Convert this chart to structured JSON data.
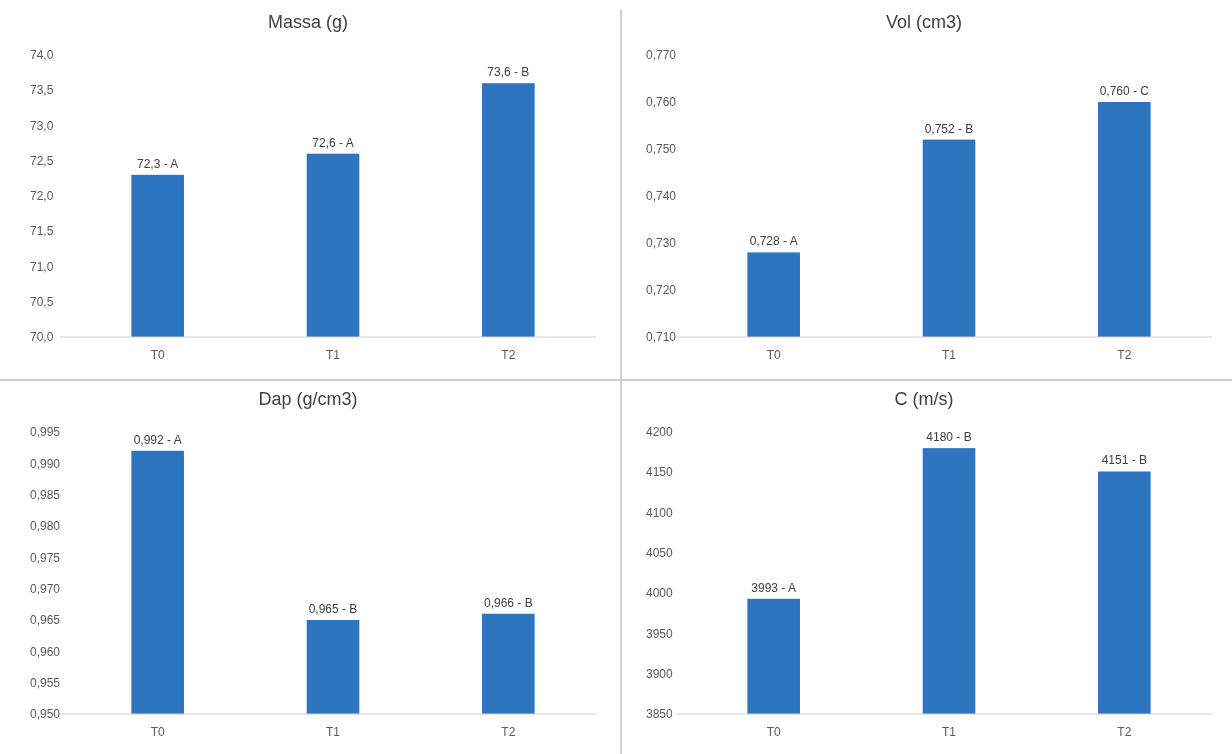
{
  "chart_data": [
    {
      "type": "bar",
      "title": "Massa (g)",
      "categories": [
        "T0",
        "T1",
        "T2"
      ],
      "values": [
        72.3,
        72.6,
        73.6
      ],
      "color": "#2e75c0",
      "value_labels": [
        "72,3 - A",
        "72,6 - A",
        "73,6 - B"
      ],
      "ylim": [
        70,
        74
      ],
      "yticks": [
        {
          "value": 70,
          "label": "70,0"
        },
        {
          "value": 70.5,
          "label": "70,5"
        },
        {
          "value": 71,
          "label": "71,0"
        },
        {
          "value": 71.5,
          "label": "71,5"
        },
        {
          "value": 72,
          "label": "72,0"
        },
        {
          "value": 72.5,
          "label": "72,5"
        },
        {
          "value": 73,
          "label": "73,0"
        },
        {
          "value": 73.5,
          "label": "73,5"
        },
        {
          "value": 74,
          "label": "74,0"
        }
      ]
    },
    {
      "type": "bar",
      "title": "Vol (cm3)",
      "categories": [
        "T0",
        "T1",
        "T2"
      ],
      "values": [
        0.728,
        0.752,
        0.76
      ],
      "color": "#2e75c0",
      "value_labels": [
        "0,728 - A",
        "0,752 - B",
        "0,760 - C"
      ],
      "ylim": [
        0.71,
        0.77
      ],
      "yticks": [
        {
          "value": 0.71,
          "label": "0,710"
        },
        {
          "value": 0.72,
          "label": "0,720"
        },
        {
          "value": 0.73,
          "label": "0,730"
        },
        {
          "value": 0.74,
          "label": "0,740"
        },
        {
          "value": 0.75,
          "label": "0,750"
        },
        {
          "value": 0.76,
          "label": "0,760"
        },
        {
          "value": 0.77,
          "label": "0,770"
        }
      ]
    },
    {
      "type": "bar",
      "title": "Dap (g/cm3)",
      "categories": [
        "T0",
        "T1",
        "T2"
      ],
      "values": [
        0.992,
        0.965,
        0.966
      ],
      "color": "#2e75c0",
      "value_labels": [
        "0,992 - A",
        "0,965 - B",
        "0,966 - B"
      ],
      "ylim": [
        0.95,
        0.995
      ],
      "yticks": [
        {
          "value": 0.95,
          "label": "0,950"
        },
        {
          "value": 0.955,
          "label": "0,955"
        },
        {
          "value": 0.96,
          "label": "0,960"
        },
        {
          "value": 0.965,
          "label": "0,965"
        },
        {
          "value": 0.97,
          "label": "0,970"
        },
        {
          "value": 0.975,
          "label": "0,975"
        },
        {
          "value": 0.98,
          "label": "0,980"
        },
        {
          "value": 0.985,
          "label": "0,985"
        },
        {
          "value": 0.99,
          "label": "0,990"
        },
        {
          "value": 0.995,
          "label": "0,995"
        }
      ]
    },
    {
      "type": "bar",
      "title": "C (m/s)",
      "categories": [
        "T0",
        "T1",
        "T2"
      ],
      "values": [
        3993,
        4180,
        4151
      ],
      "color": "#2e75c0",
      "value_labels": [
        "3993 - A",
        "4180 - B",
        "4151 - B"
      ],
      "ylim": [
        3850,
        4200
      ],
      "yticks": [
        3850,
        3900,
        3950,
        4000,
        4050,
        4100,
        4150,
        4200
      ]
    }
  ]
}
